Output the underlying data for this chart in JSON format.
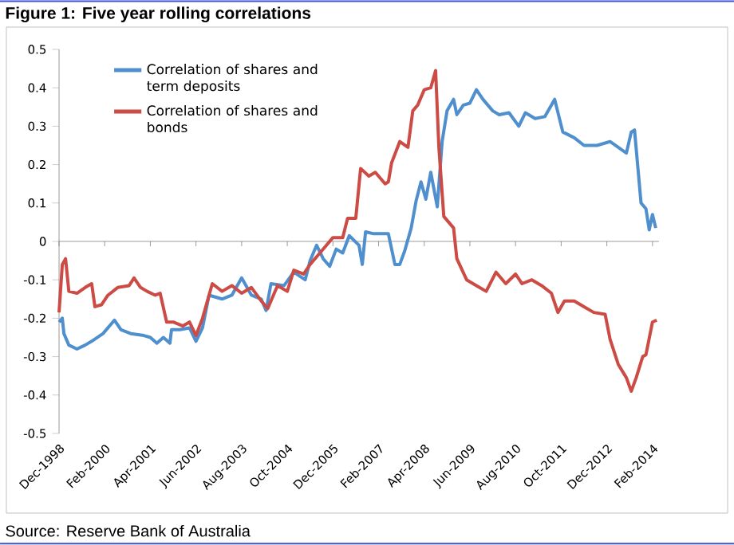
{
  "chart_data": {
    "type": "line",
    "title": "Figure 1: Five year rolling correlations",
    "annotations": [
      "Source: Reserve Bank of Australia"
    ],
    "x": [
      "1998-12",
      "1999-01",
      "1999-01-16",
      "1999-03",
      "1999-05-16",
      "1999-08",
      "1999-10",
      "2000-01-16",
      "2000-05",
      "2000-07",
      "2000-10",
      "2001-02",
      "2001-04",
      "2001-06",
      "2001-08",
      "2001-10",
      "2001-10-16",
      "2002-01",
      "2002-04",
      "2002-06",
      "2002-08",
      "2002-10",
      "2003-02",
      "2003-05",
      "2003-08",
      "2003-11",
      "2004-02",
      "2004-03-16",
      "2004-05",
      "2004-09",
      "2004-12",
      "2005-03-16",
      "2005-05",
      "2005-07",
      "2005-09",
      "2005-11",
      "2006-01",
      "2006-03",
      "2006-05",
      "2006-08",
      "2006-09",
      "2006-10",
      "2006-12-16",
      "2007-05",
      "2007-07",
      "2007-08-16",
      "2007-10",
      "2007-12",
      "2008-01-16",
      "2008-03",
      "2008-04-16",
      "2008-06",
      "2008-08",
      "2008-09-16",
      "2008-11",
      "2009-01",
      "2009-02",
      "2009-04",
      "2009-06",
      "2009-08",
      "2009-10",
      "2010-01",
      "2010-03",
      "2010-06",
      "2010-09",
      "2010-11",
      "2011-02",
      "2011-05",
      "2011-08",
      "2011-10-16",
      "2012-02",
      "2012-05",
      "2012-09",
      "2013-01",
      "2013-03-16",
      "2013-06",
      "2013-07-16",
      "2013-08-16",
      "2013-10-16",
      "2013-12",
      "2014-01",
      "2014-02",
      "2014-03"
    ],
    "series": [
      {
        "name": "Correlation of shares and term deposits",
        "color": "#4f8fce",
        "values": [
          -0.21,
          -0.2,
          -0.24,
          -0.27,
          -0.28,
          -0.27,
          -0.26,
          -0.24,
          -0.205,
          -0.23,
          -0.24,
          -0.245,
          -0.25,
          -0.265,
          -0.25,
          -0.265,
          -0.23,
          -0.23,
          -0.225,
          -0.26,
          -0.225,
          -0.14,
          -0.15,
          -0.14,
          -0.095,
          -0.14,
          -0.15,
          -0.18,
          -0.11,
          -0.115,
          -0.08,
          -0.1,
          -0.05,
          -0.01,
          -0.045,
          -0.065,
          -0.02,
          -0.03,
          0.015,
          -0.01,
          -0.06,
          0.025,
          0.02,
          0.02,
          -0.06,
          -0.06,
          -0.025,
          0.035,
          0.105,
          0.155,
          0.11,
          0.18,
          0.09,
          0.26,
          0.34,
          0.37,
          0.33,
          0.355,
          0.36,
          0.395,
          0.37,
          0.34,
          0.33,
          0.335,
          0.3,
          0.335,
          0.32,
          0.325,
          0.37,
          0.285,
          0.27,
          0.25,
          0.25,
          0.26,
          0.245,
          0.23,
          0.285,
          0.29,
          0.1,
          0.085,
          0.03,
          0.07,
          0.035
        ]
      },
      {
        "name": "Correlation of shares and bonds",
        "color": "#cc4b45",
        "x": [
          "1998-12",
          "1999-01",
          "1999-02",
          "1999-03",
          "1999-05-16",
          "1999-08",
          "1999-10",
          "1999-11",
          "2000-01",
          "2000-03",
          "2000-06",
          "2000-09-16",
          "2000-11",
          "2001-01",
          "2001-03",
          "2001-05-16",
          "2001-07",
          "2001-09",
          "2001-11",
          "2002-02",
          "2002-04",
          "2002-06",
          "2002-08",
          "2002-10",
          "2002-11",
          "2003-02",
          "2003-05",
          "2003-08",
          "2003-11",
          "2004-02",
          "2004-04",
          "2004-07",
          "2004-10",
          "2004-12",
          "2005-03",
          "2005-05",
          "2005-08",
          "2005-12",
          "2006-03",
          "2006-04-16",
          "2006-07",
          "2006-08-16",
          "2006-11",
          "2007-01",
          "2007-04",
          "2007-05",
          "2007-06",
          "2007-08-16",
          "2007-11",
          "2007-12-16",
          "2008-02",
          "2008-04",
          "2008-06",
          "2008-07-16",
          "2008-08-16",
          "2008-10",
          "2009-01",
          "2009-02",
          "2009-05",
          "2009-08",
          "2009-11",
          "2010-02",
          "2010-05",
          "2010-08",
          "2010-10",
          "2011-01",
          "2011-04",
          "2011-07",
          "2011-09",
          "2011-11",
          "2012-02",
          "2012-05",
          "2012-08",
          "2012-11-16",
          "2013-01",
          "2013-03-16",
          "2013-06",
          "2013-07-16",
          "2013-09",
          "2013-11",
          "2013-12",
          "2014-02",
          "2014-03-10"
        ],
        "values": [
          -0.185,
          -0.06,
          -0.045,
          -0.13,
          -0.135,
          -0.12,
          -0.11,
          -0.17,
          -0.165,
          -0.14,
          -0.12,
          -0.115,
          -0.095,
          -0.12,
          -0.13,
          -0.14,
          -0.135,
          -0.21,
          -0.21,
          -0.22,
          -0.21,
          -0.245,
          -0.2,
          -0.14,
          -0.11,
          -0.13,
          -0.115,
          -0.135,
          -0.12,
          -0.155,
          -0.175,
          -0.115,
          -0.13,
          -0.075,
          -0.085,
          -0.06,
          -0.03,
          0.01,
          0.01,
          0.06,
          0.06,
          0.19,
          0.17,
          0.18,
          0.15,
          0.155,
          0.205,
          0.26,
          0.245,
          0.34,
          0.355,
          0.395,
          0.4,
          0.445,
          0.245,
          0.065,
          0.035,
          -0.045,
          -0.1,
          -0.115,
          -0.13,
          -0.08,
          -0.11,
          -0.085,
          -0.11,
          -0.1,
          -0.115,
          -0.135,
          -0.185,
          -0.155,
          -0.155,
          -0.17,
          -0.185,
          -0.19,
          -0.255,
          -0.32,
          -0.355,
          -0.39,
          -0.355,
          -0.3,
          -0.295,
          -0.21,
          -0.205
        ]
      }
    ],
    "xlim": [
      "1998-12",
      "2014-04"
    ],
    "xticks": [
      {
        "value": "1998-12",
        "label": "Dec-1998"
      },
      {
        "value": "2000-02",
        "label": "Feb-2000"
      },
      {
        "value": "2001-04",
        "label": "Apr-2001"
      },
      {
        "value": "2002-06",
        "label": "Jun-2002"
      },
      {
        "value": "2003-08",
        "label": "Aug-2003"
      },
      {
        "value": "2004-10",
        "label": "Oct-2004"
      },
      {
        "value": "2005-12",
        "label": "Dec-2005"
      },
      {
        "value": "2007-02",
        "label": "Feb-2007"
      },
      {
        "value": "2008-04",
        "label": "Apr-2008"
      },
      {
        "value": "2009-06",
        "label": "Jun-2009"
      },
      {
        "value": "2010-08",
        "label": "Aug-2010"
      },
      {
        "value": "2011-10",
        "label": "Oct-2011"
      },
      {
        "value": "2012-12",
        "label": "Dec-2012"
      },
      {
        "value": "2014-02",
        "label": "Feb-2014"
      }
    ],
    "ylim": [
      -0.5,
      0.5
    ],
    "yticks": [
      -0.5,
      -0.4,
      -0.3,
      -0.2,
      -0.1,
      0,
      0.1,
      0.2,
      0.3,
      0.4,
      0.5
    ],
    "ref_lines": [
      {
        "axis": "y",
        "value": 0
      }
    ],
    "legend": "top left",
    "grid": false,
    "marker": "none",
    "line_style": "solid"
  }
}
